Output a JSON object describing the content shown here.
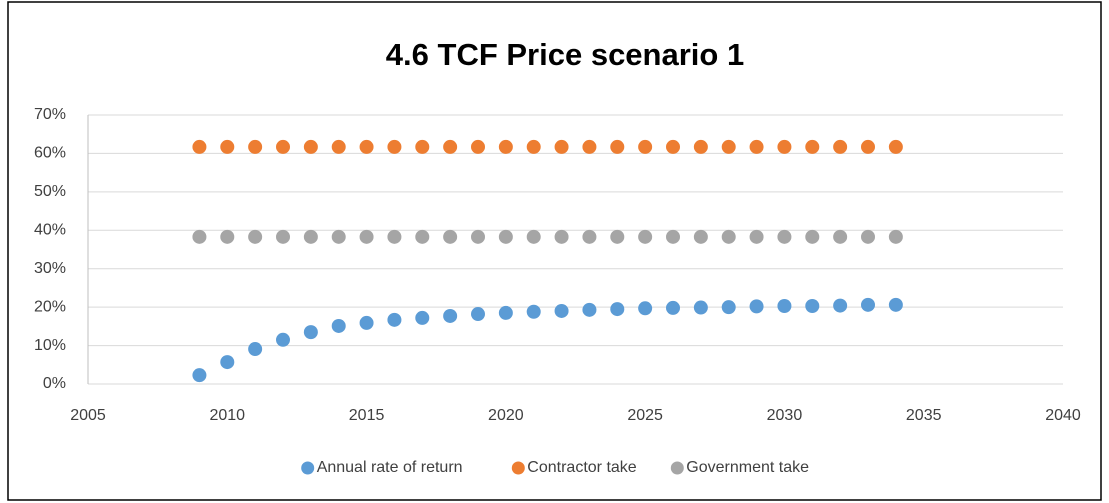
{
  "chart_data": {
    "type": "scatter",
    "title": "4.6 TCF Price scenario 1",
    "x": [
      2009,
      2010,
      2011,
      2012,
      2013,
      2014,
      2015,
      2016,
      2017,
      2018,
      2019,
      2020,
      2021,
      2022,
      2023,
      2024,
      2025,
      2026,
      2027,
      2028,
      2029,
      2030,
      2031,
      2032,
      2033,
      2034
    ],
    "series": [
      {
        "name": "Annual rate of return",
        "color": "#5b9bd5",
        "values": [
          2.3,
          5.7,
          9.1,
          11.5,
          13.5,
          15.1,
          15.9,
          16.7,
          17.2,
          17.7,
          18.2,
          18.5,
          18.8,
          19.0,
          19.3,
          19.5,
          19.7,
          19.8,
          19.9,
          20.0,
          20.2,
          20.3,
          20.3,
          20.4,
          20.6,
          20.6
        ]
      },
      {
        "name": "Contractor take",
        "color": "#ed7d31",
        "values": [
          61.7,
          61.7,
          61.7,
          61.7,
          61.7,
          61.7,
          61.7,
          61.7,
          61.7,
          61.7,
          61.7,
          61.7,
          61.7,
          61.7,
          61.7,
          61.7,
          61.7,
          61.7,
          61.7,
          61.7,
          61.7,
          61.7,
          61.7,
          61.7,
          61.7,
          61.7
        ]
      },
      {
        "name": "Government take",
        "color": "#a5a5a5",
        "values": [
          38.3,
          38.3,
          38.3,
          38.3,
          38.3,
          38.3,
          38.3,
          38.3,
          38.3,
          38.3,
          38.3,
          38.3,
          38.3,
          38.3,
          38.3,
          38.3,
          38.3,
          38.3,
          38.3,
          38.3,
          38.3,
          38.3,
          38.3,
          38.3,
          38.3,
          38.3
        ]
      }
    ],
    "xlim": [
      2005,
      2040
    ],
    "xticks": [
      2005,
      2010,
      2015,
      2020,
      2025,
      2030,
      2035,
      2040
    ],
    "ylim": [
      0,
      70
    ],
    "yticks": [
      {
        "value": 0,
        "label": "0%"
      },
      {
        "value": 10,
        "label": "10%"
      },
      {
        "value": 20,
        "label": "20%"
      },
      {
        "value": 30,
        "label": "30%"
      },
      {
        "value": 40,
        "label": "40%"
      },
      {
        "value": 50,
        "label": "50%"
      },
      {
        "value": 60,
        "label": "60%"
      },
      {
        "value": 70,
        "label": "70%"
      }
    ],
    "grid": true,
    "legend": "bottom"
  }
}
